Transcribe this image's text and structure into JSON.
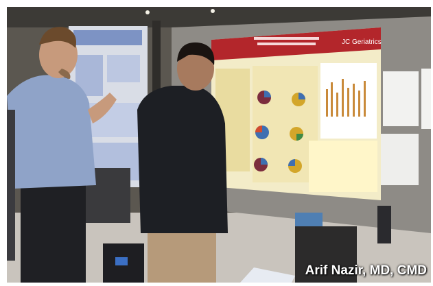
{
  "photo": {
    "caption": "Arif Nazir, MD, CMD",
    "poster_logo_text": "JC Geriatrics",
    "colors": {
      "poster_banner": "#b3262b",
      "poster_body": "#f3ecc8",
      "board": "#8e8b86",
      "floor": "#c9c4bd",
      "jacket": "#1d1f24",
      "shirt": "#8fa3c8"
    }
  }
}
